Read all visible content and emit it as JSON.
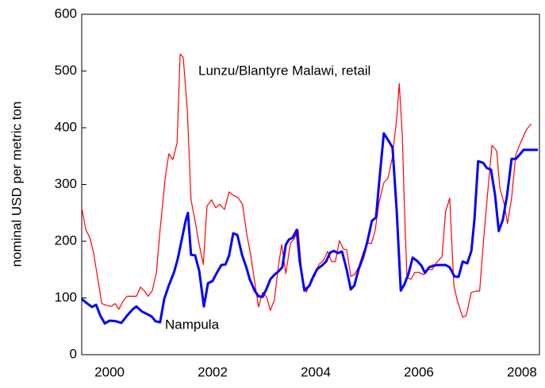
{
  "chart_data": {
    "type": "line",
    "y_label": "nominal USD per metric ton",
    "xlim": [
      1999.96,
      2008.84
    ],
    "xticks": [
      {
        "value": 2000.5,
        "label": "2000"
      },
      {
        "value": 2002.5,
        "label": "2002"
      },
      {
        "value": 2004.5,
        "label": "2004"
      },
      {
        "value": 2006.5,
        "label": "2006"
      },
      {
        "value": 2008.5,
        "label": "2008"
      }
    ],
    "ylim": [
      0,
      600
    ],
    "yticks": [
      0,
      100,
      200,
      300,
      400,
      500,
      600
    ],
    "series": [
      {
        "name": "Lunzu/Blantyre Malawi, retail",
        "color": "#ff0000",
        "x": [
          1999.96,
          2000.04,
          2000.12,
          2000.19,
          2000.28,
          2000.35,
          2000.44,
          2000.53,
          2000.61,
          2000.68,
          2000.76,
          2000.84,
          2000.93,
          2001.02,
          2001.1,
          2001.18,
          2001.25,
          2001.33,
          2001.41,
          2001.48,
          2001.58,
          2001.65,
          2001.73,
          2001.81,
          2001.87,
          2001.93,
          2002.01,
          2002.08,
          2002.16,
          2002.24,
          2002.32,
          2002.39,
          2002.48,
          2002.56,
          2002.64,
          2002.73,
          2002.82,
          2002.9,
          2002.99,
          2003.08,
          2003.16,
          2003.24,
          2003.32,
          2003.39,
          2003.47,
          2003.55,
          2003.62,
          2003.7,
          2003.78,
          2003.84,
          2003.92,
          2004.01,
          2004.08,
          2004.16,
          2004.24,
          2004.32,
          2004.41,
          2004.48,
          2004.56,
          2004.65,
          2004.73,
          2004.81,
          2004.88,
          2004.96,
          2005.04,
          2005.1,
          2005.18,
          2005.25,
          2005.33,
          2005.42,
          2005.5,
          2005.58,
          2005.65,
          2005.73,
          2005.82,
          2005.9,
          2005.98,
          2006.07,
          2006.12,
          2006.18,
          2006.22,
          2006.27,
          2006.35,
          2006.42,
          2006.5,
          2006.59,
          2006.67,
          2006.76,
          2006.84,
          2006.95,
          2007.02,
          2007.1,
          2007.18,
          2007.25,
          2007.35,
          2007.42,
          2007.52,
          2007.61,
          2007.68,
          2007.76,
          2007.84,
          2007.92,
          2008.01,
          2008.07,
          2008.16,
          2008.22,
          2008.3,
          2008.38,
          2008.47,
          2008.59,
          2008.68
        ],
        "values": [
          259,
          220,
          206,
          180,
          129,
          90,
          87,
          85,
          90,
          80,
          94,
          103,
          103,
          103,
          119,
          112,
          103,
          113,
          145,
          220,
          312,
          354,
          344,
          373,
          530,
          524,
          429,
          273,
          235,
          194,
          159,
          262,
          273,
          259,
          265,
          256,
          287,
          281,
          277,
          265,
          214,
          175,
          126,
          84,
          110,
          101,
          78,
          97,
          159,
          194,
          143,
          197,
          204,
          220,
          133,
          110,
          133,
          138,
          159,
          166,
          182,
          164,
          164,
          201,
          186,
          185,
          138,
          141,
          154,
          180,
          197,
          196,
          217,
          269,
          303,
          311,
          345,
          415,
          478,
          385,
          259,
          136,
          133,
          145,
          145,
          141,
          150,
          150,
          162,
          173,
          252,
          276,
          122,
          94,
          66,
          69,
          110,
          112,
          112,
          206,
          290,
          369,
          359,
          295,
          264,
          231,
          276,
          352,
          373,
          397,
          407
        ]
      },
      {
        "name": "Nampula",
        "color": "#0000ff",
        "x": [
          1999.96,
          2000.07,
          2000.16,
          2000.24,
          2000.32,
          2000.41,
          2000.5,
          2000.62,
          2000.73,
          2000.84,
          2000.95,
          2001.02,
          2001.13,
          2001.24,
          2001.32,
          2001.39,
          2001.48,
          2001.56,
          2001.65,
          2001.75,
          2001.82,
          2001.9,
          2001.98,
          2002.02,
          2002.08,
          2002.16,
          2002.24,
          2002.33,
          2002.41,
          2002.5,
          2002.58,
          2002.67,
          2002.75,
          2002.82,
          2002.9,
          2002.98,
          2003.07,
          2003.15,
          2003.22,
          2003.32,
          2003.39,
          2003.47,
          2003.55,
          2003.62,
          2003.7,
          2003.78,
          2003.85,
          2003.92,
          2003.98,
          2004.05,
          2004.13,
          2004.19,
          2004.28,
          2004.38,
          2004.45,
          2004.53,
          2004.62,
          2004.7,
          2004.78,
          2004.85,
          2004.93,
          2005.01,
          2005.1,
          2005.18,
          2005.25,
          2005.33,
          2005.42,
          2005.5,
          2005.59,
          2005.67,
          2005.73,
          2005.82,
          2005.92,
          2005.99,
          2006.07,
          2006.15,
          2006.22,
          2006.3,
          2006.38,
          2006.47,
          2006.55,
          2006.62,
          2006.7,
          2006.79,
          2006.87,
          2006.95,
          2007.02,
          2007.1,
          2007.19,
          2007.27,
          2007.35,
          2007.44,
          2007.52,
          2007.58,
          2007.65,
          2007.75,
          2007.82,
          2007.9,
          2007.98,
          2008.05,
          2008.13,
          2008.21,
          2008.3,
          2008.38,
          2008.45,
          2008.53,
          2008.62,
          2008.81
        ],
        "values": [
          98,
          90,
          84,
          88,
          69,
          55,
          60,
          59,
          56,
          69,
          80,
          85,
          76,
          71,
          67,
          59,
          57,
          98,
          122,
          145,
          168,
          203,
          238,
          250,
          176,
          175,
          148,
          85,
          126,
          130,
          144,
          158,
          159,
          175,
          214,
          211,
          176,
          155,
          133,
          112,
          103,
          102,
          117,
          133,
          141,
          147,
          154,
          194,
          203,
          206,
          220,
          164,
          113,
          122,
          137,
          151,
          157,
          164,
          180,
          183,
          179,
          182,
          150,
          115,
          122,
          150,
          172,
          199,
          236,
          242,
          303,
          390,
          376,
          365,
          255,
          113,
          124,
          143,
          171,
          165,
          157,
          144,
          154,
          157,
          158,
          158,
          158,
          154,
          138,
          137,
          164,
          161,
          183,
          239,
          341,
          338,
          329,
          326,
          281,
          218,
          238,
          280,
          345,
          345,
          352,
          361,
          361,
          361
        ]
      }
    ]
  }
}
